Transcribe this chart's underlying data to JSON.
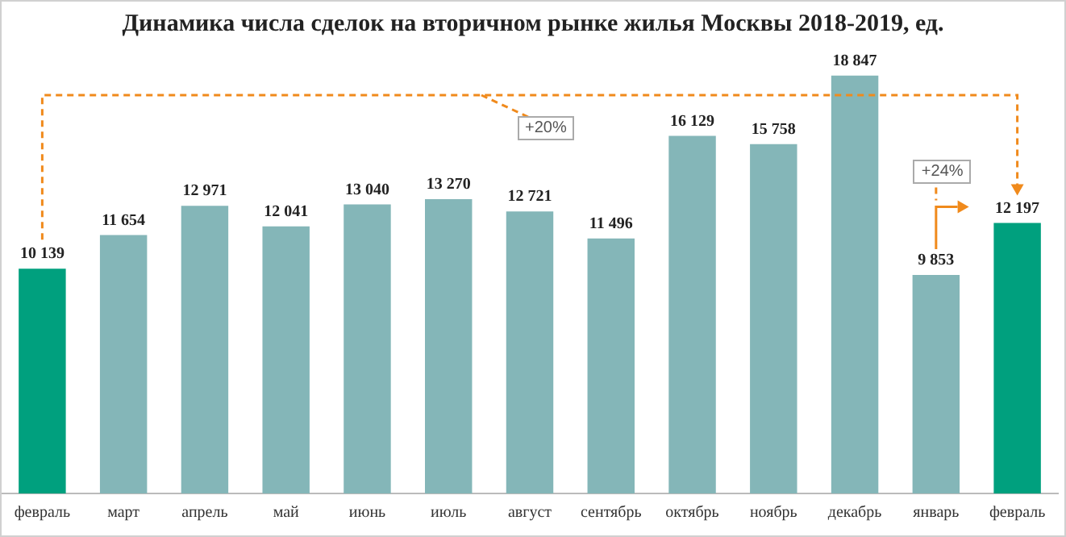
{
  "chart_data": {
    "type": "bar",
    "title": "Динамика числа сделок на вторичном рынке жилья Москвы 2018-2019, ед.",
    "categories": [
      "февраль",
      "март",
      "апрель",
      "май",
      "июнь",
      "июль",
      "август",
      "сентябрь",
      "октябрь",
      "ноябрь",
      "декабрь",
      "январь",
      "февраль"
    ],
    "values": [
      10139,
      11654,
      12971,
      12041,
      13040,
      13270,
      12721,
      11496,
      16129,
      15758,
      18847,
      9853,
      12197
    ],
    "colors": [
      "#00a07e",
      "#84b6b8",
      "#84b6b8",
      "#84b6b8",
      "#84b6b8",
      "#84b6b8",
      "#84b6b8",
      "#84b6b8",
      "#84b6b8",
      "#84b6b8",
      "#84b6b8",
      "#84b6b8",
      "#00a07e"
    ],
    "value_labels": [
      "10 139",
      "11 654",
      "12 971",
      "12 041",
      "13 040",
      "13 270",
      "12 721",
      "11 496",
      "16 129",
      "15 758",
      "18 847",
      "9 853",
      "12 197"
    ],
    "annotations": [
      "+20%",
      "+24%"
    ],
    "grid": false,
    "legend": false
  }
}
